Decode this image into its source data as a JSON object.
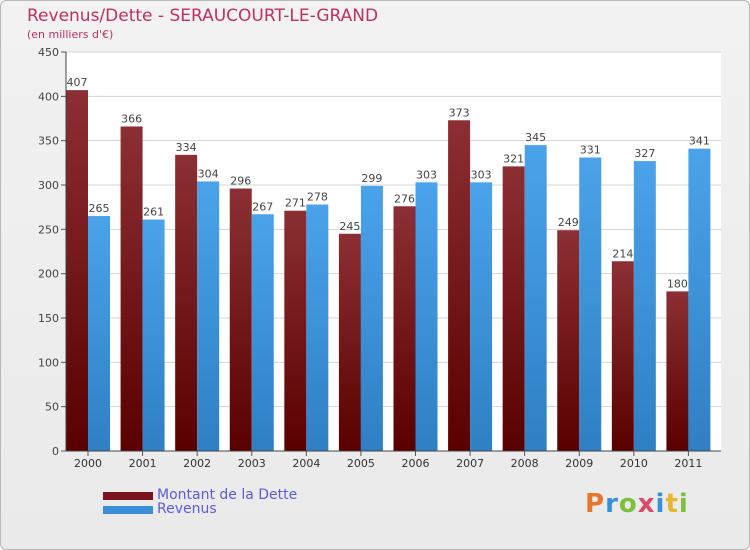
{
  "title": "Revenus/Dette - SERAUCOURT-LE-GRAND",
  "subtitle": "(en milliers d'€)",
  "logo": {
    "text": "Proxiti",
    "letter_colors": [
      "#e8762d",
      "#3a8fd6",
      "#7bbf3a",
      "#d64a6a",
      "#3a8fd6",
      "#e8b52d",
      "#7bbf3a"
    ]
  },
  "colors": {
    "title": "#c0305f",
    "legend_text": "#5b5bd6",
    "debt": "#7a1520",
    "revenue": "#3b8fd6"
  },
  "legend": [
    {
      "label": "Montant de la Dette",
      "color": "#7a1520"
    },
    {
      "label": "Revenus",
      "color": "#3b8fd6"
    }
  ],
  "chart_data": {
    "type": "bar",
    "categories": [
      "2000",
      "2001",
      "2002",
      "2003",
      "2004",
      "2005",
      "2006",
      "2007",
      "2008",
      "2009",
      "2010",
      "2011"
    ],
    "series": [
      {
        "name": "Montant de la Dette",
        "values": [
          407,
          366,
          334,
          296,
          271,
          245,
          276,
          373,
          321,
          249,
          214,
          180
        ]
      },
      {
        "name": "Revenus",
        "values": [
          265,
          261,
          304,
          267,
          278,
          299,
          303,
          303,
          345,
          331,
          327,
          341
        ]
      }
    ],
    "y_ticks": [
      0,
      50,
      100,
      150,
      200,
      250,
      300,
      350,
      400,
      450
    ],
    "ylim": [
      0,
      450
    ],
    "grid": true,
    "data_labels": true,
    "legend_position": "bottom-left"
  }
}
